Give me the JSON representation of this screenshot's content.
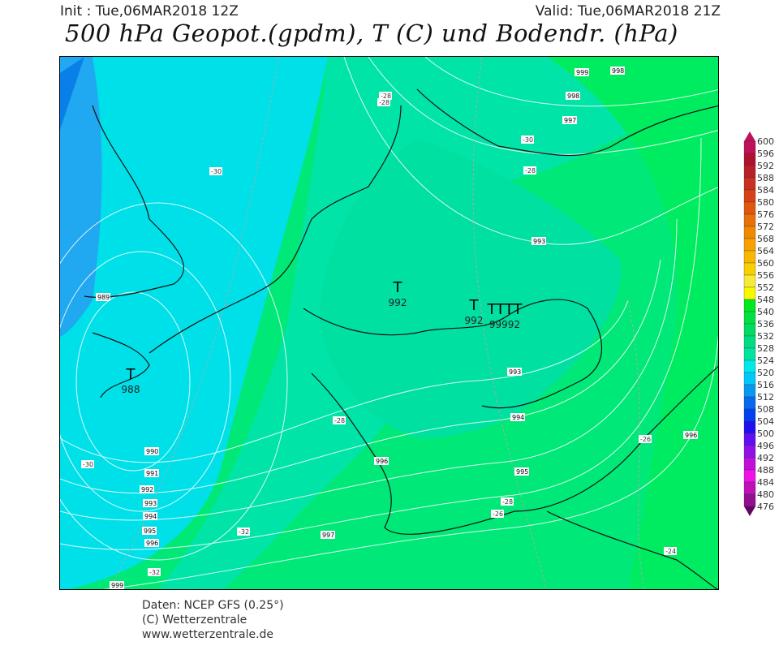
{
  "header": {
    "init": "Init : Tue,06MAR2018 12Z",
    "valid": "Valid: Tue,06MAR2018 21Z",
    "title": "500 hPa Geopot.(gpdm), T (C) und Bodendr. (hPa)"
  },
  "legend": {
    "levels": [
      "600",
      "596",
      "592",
      "588",
      "584",
      "580",
      "576",
      "572",
      "568",
      "564",
      "560",
      "556",
      "552",
      "548",
      "540",
      "536",
      "532",
      "528",
      "524",
      "520",
      "516",
      "512",
      "508",
      "504",
      "500",
      "496",
      "492",
      "488",
      "484",
      "480",
      "476"
    ],
    "colors": [
      "#c0105a",
      "#b01030",
      "#b82028",
      "#c83020",
      "#d84018",
      "#e05810",
      "#e87008",
      "#f08800",
      "#f8a000",
      "#f8b800",
      "#f8d000",
      "#f8e838",
      "#f8f800",
      "#00e820",
      "#00e040",
      "#00dc60",
      "#00dc80",
      "#00e4a0",
      "#00e8e8",
      "#00c8f8",
      "#0898f0",
      "#0868f0",
      "#0040f0",
      "#2010f0",
      "#6010f0",
      "#9010e8",
      "#c010d8",
      "#f010e8",
      "#c010b8",
      "#901090",
      "#600860"
    ]
  },
  "map": {
    "lows": [
      {
        "label": "T",
        "value": "988"
      },
      {
        "label": "T",
        "value": "992"
      },
      {
        "label": "T",
        "value": "992"
      },
      {
        "label": "TTTT",
        "value": "99992"
      }
    ],
    "isobar_labels": [
      "999",
      "998",
      "997",
      "993",
      "993",
      "994",
      "995",
      "996",
      "997",
      "996",
      "989",
      "990",
      "991",
      "992",
      "993",
      "994",
      "995",
      "996",
      "999",
      "998"
    ],
    "temp_labels": [
      "-30",
      "-28",
      "-28",
      "-30",
      "-28",
      "-30",
      "-28",
      "-32",
      "-32",
      "-28",
      "-26",
      "-26",
      "-24"
    ]
  },
  "footer": {
    "source": "Daten: NCEP GFS (0.25°)",
    "copyright": "(C) Wetterzentrale",
    "url": "www.wetterzentrale.de"
  }
}
